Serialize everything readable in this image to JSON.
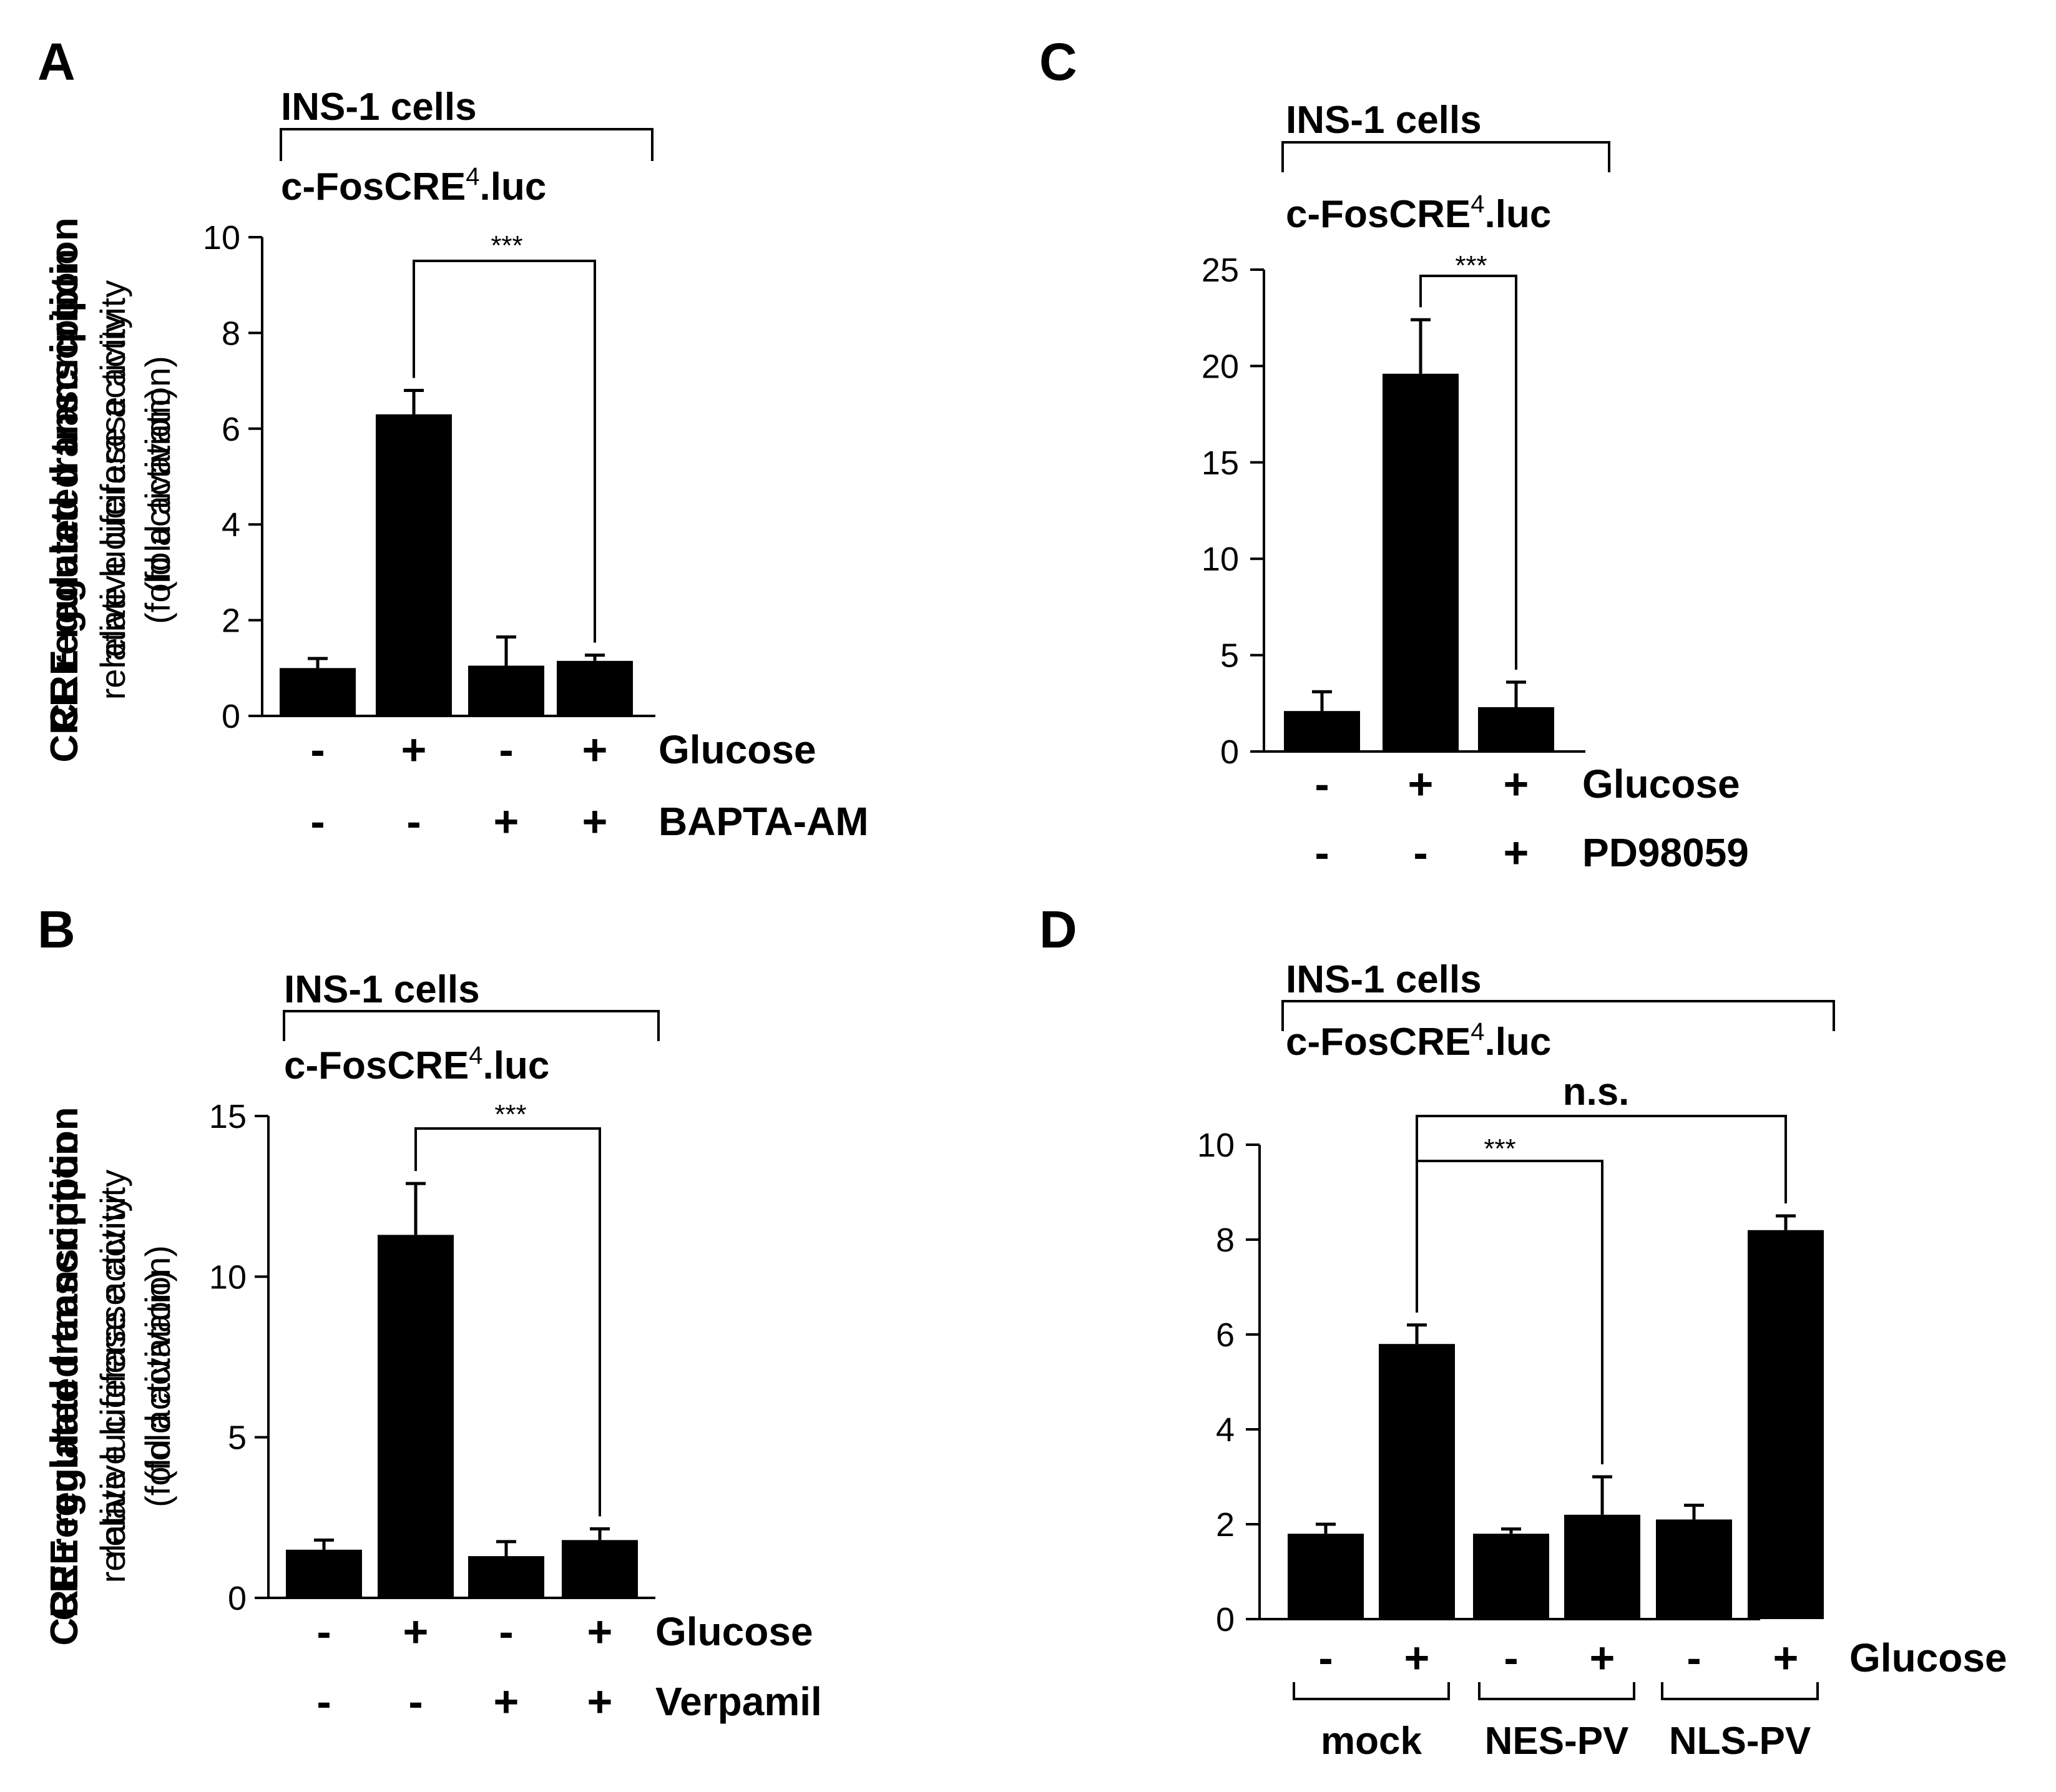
{
  "chart_data": [
    {
      "panel": "A",
      "type": "bar",
      "cell_label": "INS-1 cells",
      "reporter": "c-FosCRE",
      "reporter_sup": "4",
      "reporter_suffix": ".luc",
      "ylabel": "CRE regulated transcription",
      "ylabel2": "relative luciferase activity",
      "ylabel3": "(fold activation)",
      "ylim": [
        0,
        10
      ],
      "yticks": [
        0,
        2,
        4,
        6,
        8,
        10
      ],
      "values": [
        1.0,
        6.3,
        1.05,
        1.15
      ],
      "errors": [
        0.2,
        0.5,
        0.6,
        0.12
      ],
      "conditions": [
        {
          "name": "Glucose",
          "signs": [
            "-",
            "+",
            "-",
            "+"
          ]
        },
        {
          "name": "BAPTA-AM",
          "signs": [
            "-",
            "-",
            "+",
            "+"
          ]
        }
      ],
      "significance": [
        {
          "from": 1,
          "to": 3,
          "label": "***"
        }
      ]
    },
    {
      "panel": "B",
      "type": "bar",
      "cell_label": "INS-1 cells",
      "reporter": "c-FosCRE",
      "reporter_sup": "4",
      "reporter_suffix": ".luc",
      "ylabel": "CRE regulated transcription",
      "ylabel2": "relative luciferase activity",
      "ylabel3": "(fold activation)",
      "ylim": [
        0,
        15
      ],
      "yticks": [
        0,
        5,
        10,
        15
      ],
      "values": [
        1.5,
        11.3,
        1.3,
        1.8
      ],
      "errors": [
        0.3,
        1.6,
        0.45,
        0.35
      ],
      "conditions": [
        {
          "name": "Glucose",
          "signs": [
            "-",
            "+",
            "-",
            "+"
          ]
        },
        {
          "name": "Verpamil",
          "signs": [
            "-",
            "-",
            "+",
            "+"
          ]
        }
      ],
      "significance": [
        {
          "from": 1,
          "to": 3,
          "label": "***"
        }
      ]
    },
    {
      "panel": "C",
      "type": "bar",
      "cell_label": "INS-1 cells",
      "reporter": "c-FosCRE",
      "reporter_sup": "4",
      "reporter_suffix": ".luc",
      "ylabel": "CRE regulated transcription",
      "ylabel2": "relative luciferase activity",
      "ylabel3": "(fold activation)",
      "ylim": [
        0,
        25
      ],
      "yticks": [
        0,
        5,
        10,
        15,
        20,
        25
      ],
      "values": [
        2.1,
        19.6,
        2.3
      ],
      "errors": [
        1.0,
        2.8,
        1.3
      ],
      "conditions": [
        {
          "name": "Glucose",
          "signs": [
            "-",
            "+",
            "+"
          ]
        },
        {
          "name": "PD98059",
          "signs": [
            "-",
            "-",
            "+"
          ]
        }
      ],
      "significance": [
        {
          "from": 1,
          "to": 2,
          "label": "***"
        }
      ]
    },
    {
      "panel": "D",
      "type": "bar",
      "cell_label": "INS-1 cells",
      "reporter": "c-FosCRE",
      "reporter_sup": "4",
      "reporter_suffix": ".luc",
      "ylabel": "CRE regulated transcription",
      "ylabel2": "relative luciferase activity",
      "ylabel3": "(fold activation)",
      "ylim": [
        0,
        10
      ],
      "yticks": [
        0,
        2,
        4,
        6,
        8,
        10
      ],
      "values": [
        1.8,
        5.8,
        1.8,
        2.2,
        2.1,
        8.2
      ],
      "errors": [
        0.2,
        0.4,
        0.1,
        0.8,
        0.3,
        0.3
      ],
      "conditions": [
        {
          "name": "Glucose",
          "signs": [
            "-",
            "+",
            "-",
            "+",
            "-",
            "+"
          ]
        }
      ],
      "groups": [
        {
          "name": "mock",
          "bars": [
            0,
            1
          ]
        },
        {
          "name": "NES-PV",
          "bars": [
            2,
            3
          ]
        },
        {
          "name": "NLS-PV",
          "bars": [
            4,
            5
          ]
        }
      ],
      "significance": [
        {
          "from": 1,
          "to": 3,
          "label": "***"
        },
        {
          "from": 1,
          "to": 5,
          "label": "n.s."
        }
      ]
    }
  ]
}
